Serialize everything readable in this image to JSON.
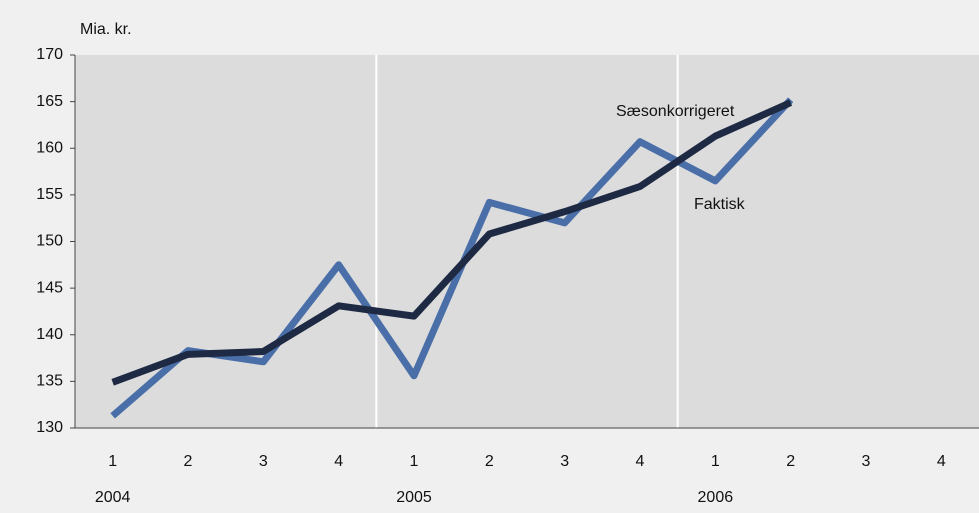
{
  "chart_data": {
    "type": "line",
    "y_axis_label": "Mia. kr.",
    "categories": [
      "1",
      "2",
      "3",
      "4",
      "1",
      "2",
      "3",
      "4",
      "1",
      "2",
      "3",
      "4"
    ],
    "year_labels": [
      "2004",
      "2005",
      "2006"
    ],
    "series": [
      {
        "name": "Faktisk",
        "color": "#4a6fa8",
        "values": [
          131.3,
          138.3,
          137.1,
          147.5,
          135.6,
          154.2,
          152.0,
          160.7,
          156.5,
          165.2,
          null,
          null
        ]
      },
      {
        "name": "Sæsonkorrigeret",
        "color": "#1e2a44",
        "values": [
          134.9,
          137.9,
          138.2,
          143.1,
          142.0,
          150.8,
          153.2,
          155.9,
          161.3,
          164.9,
          null,
          null
        ]
      }
    ],
    "ylim": [
      130,
      170
    ],
    "yticks": [
      130,
      135,
      140,
      145,
      150,
      155,
      160,
      165,
      170
    ],
    "grid": false
  }
}
